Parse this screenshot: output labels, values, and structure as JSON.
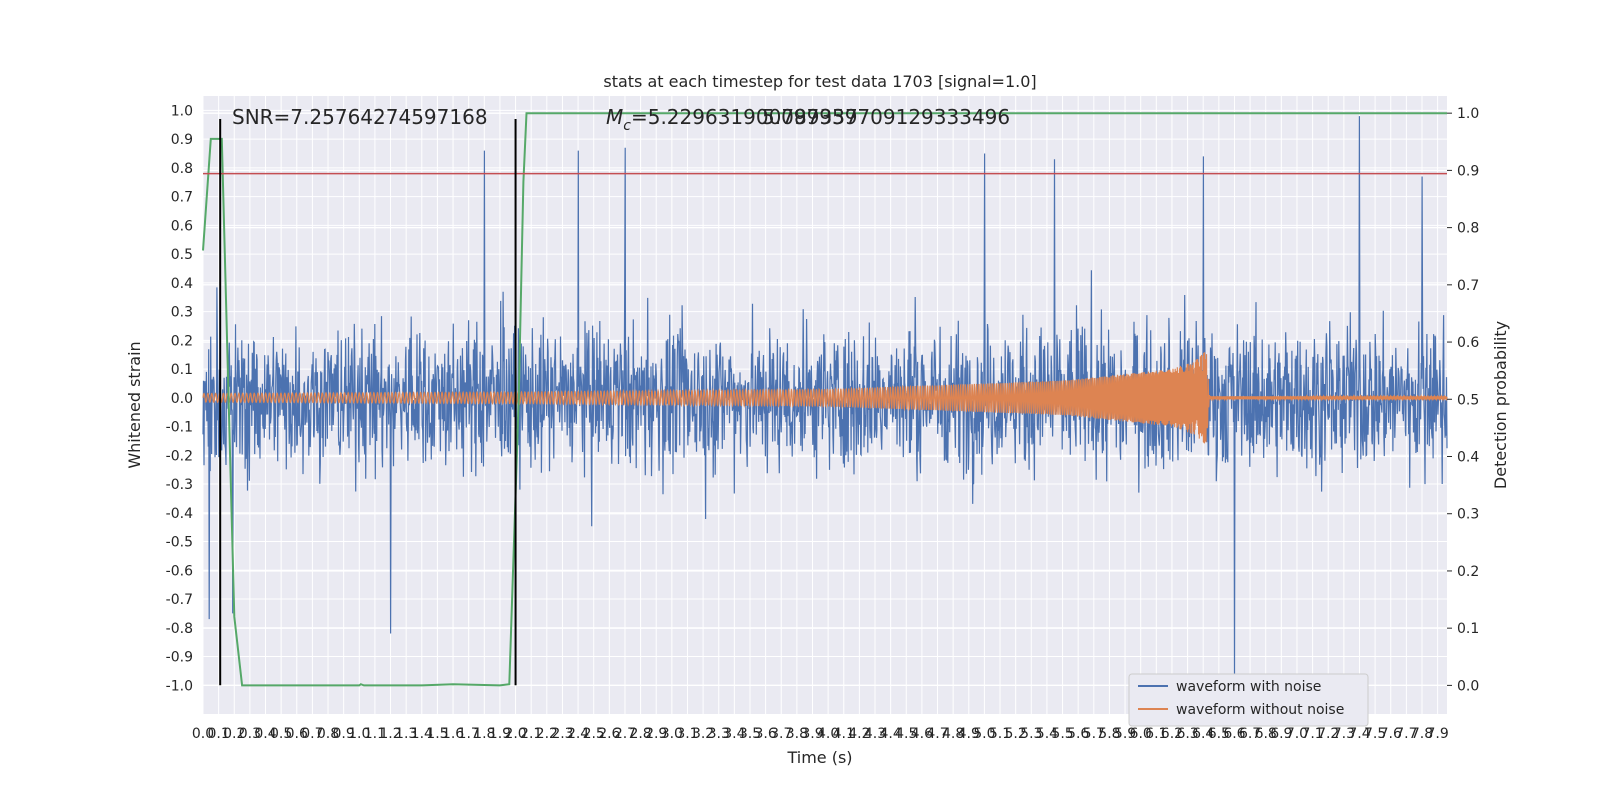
{
  "chart_data": {
    "type": "line",
    "title": "stats at each timestep for test data 1703 [signal=1.0]",
    "xlabel": "Time (s)",
    "ylabel_left": "Whitened strain",
    "ylabel_right": "Detection probability",
    "xlim": [
      0.0,
      7.96
    ],
    "ylim_left": [
      -1.1,
      1.05
    ],
    "ylim_right": [
      -0.05,
      1.03
    ],
    "x_ticks": [
      "0.0",
      "0.1",
      "0.2",
      "0.3",
      "0.4",
      "0.5",
      "0.6",
      "0.7",
      "0.8",
      "0.9",
      "1.0",
      "1.1",
      "1.2",
      "1.3",
      "1.4",
      "1.5",
      "1.6",
      "1.7",
      "1.8",
      "1.9",
      "2.0",
      "2.1",
      "2.2",
      "2.3",
      "2.4",
      "2.5",
      "2.6",
      "2.7",
      "2.8",
      "2.9",
      "3.0",
      "3.1",
      "3.2",
      "3.3",
      "3.4",
      "3.5",
      "3.6",
      "3.7",
      "3.8",
      "3.9",
      "4.0",
      "4.1",
      "4.2",
      "4.3",
      "4.4",
      "4.5",
      "4.6",
      "4.7",
      "4.8",
      "4.9",
      "5.0",
      "5.1",
      "5.2",
      "5.3",
      "5.4",
      "5.5",
      "5.6",
      "5.7",
      "5.8",
      "5.9",
      "6.0",
      "6.1",
      "6.2",
      "6.3",
      "6.4",
      "6.5",
      "6.6",
      "6.7",
      "6.8",
      "6.9",
      "7.0",
      "7.1",
      "7.2",
      "7.3",
      "7.4",
      "7.5",
      "7.6",
      "7.7",
      "7.8",
      "7.9"
    ],
    "y_ticks_left": [
      "1.0",
      "0.9",
      "0.8",
      "0.7",
      "0.6",
      "0.5",
      "0.4",
      "0.3",
      "0.2",
      "0.1",
      "0.0",
      "-0.1",
      "-0.2",
      "-0.3",
      "-0.4",
      "-0.5",
      "-0.6",
      "-0.7",
      "-0.8",
      "-0.9",
      "-1.0"
    ],
    "y_ticks_right": [
      "1.0",
      "0.9",
      "0.8",
      "0.7",
      "0.6",
      "0.5",
      "0.4",
      "0.3",
      "0.2",
      "0.1",
      "0.0"
    ],
    "annotations": {
      "snr": "SNR=7.25764274597168",
      "mc": "M",
      "mc_sub": "c",
      "mc_value": "=5.229631900789337",
      "mc_overlap": "5.097959709129333496"
    },
    "legend": {
      "position": "lower-right",
      "entries": [
        "waveform with noise",
        "waveform without noise"
      ]
    },
    "colors": {
      "noise": "#4c72b0",
      "clean": "#dd8452",
      "probability": "#55a868",
      "threshold": "#c44e52",
      "markers": "#000000",
      "background": "#eaeaf2",
      "grid": "#ffffff"
    },
    "series": [
      {
        "name": "waveform with noise",
        "axis": "left",
        "description_peaks": [
          {
            "x": 0.04,
            "y": -0.77
          },
          {
            "x": 0.19,
            "y": -0.75
          },
          {
            "x": 1.2,
            "y": -0.82
          },
          {
            "x": 1.8,
            "y": 0.86
          },
          {
            "x": 2.7,
            "y": 0.87
          },
          {
            "x": 2.4,
            "y": 0.86
          },
          {
            "x": 5.0,
            "y": 0.85
          },
          {
            "x": 5.45,
            "y": 0.83
          },
          {
            "x": 6.4,
            "y": 0.84
          },
          {
            "x": 6.6,
            "y": -0.98
          },
          {
            "x": 7.4,
            "y": 0.98
          },
          {
            "x": 7.8,
            "y": 0.77
          }
        ]
      },
      {
        "name": "waveform without noise",
        "axis": "left",
        "envelope": [
          {
            "x": 0.0,
            "y": 0.015
          },
          {
            "x": 2.0,
            "y": 0.02
          },
          {
            "x": 4.0,
            "y": 0.03
          },
          {
            "x": 5.5,
            "y": 0.06
          },
          {
            "x": 6.2,
            "y": 0.1
          },
          {
            "x": 6.35,
            "y": 0.13
          },
          {
            "x": 6.42,
            "y": 0.165
          },
          {
            "x": 6.44,
            "y": 0.005
          },
          {
            "x": 7.96,
            "y": 0.005
          }
        ]
      },
      {
        "name": "detection probability",
        "axis": "right",
        "points": [
          {
            "x": 0.0,
            "y": 0.76
          },
          {
            "x": 0.05,
            "y": 0.955
          },
          {
            "x": 0.1,
            "y": 0.955
          },
          {
            "x": 0.12,
            "y": 0.955
          },
          {
            "x": 0.2,
            "y": 0.12
          },
          {
            "x": 0.25,
            "y": 0.0
          },
          {
            "x": 1.0,
            "y": 0.0
          },
          {
            "x": 1.01,
            "y": 0.002
          },
          {
            "x": 1.03,
            "y": 0.0
          },
          {
            "x": 1.4,
            "y": 0.0
          },
          {
            "x": 1.6,
            "y": 0.002
          },
          {
            "x": 1.9,
            "y": 0.0
          },
          {
            "x": 1.96,
            "y": 0.002
          },
          {
            "x": 2.02,
            "y": 0.5
          },
          {
            "x": 2.05,
            "y": 0.88
          },
          {
            "x": 2.07,
            "y": 1.0
          },
          {
            "x": 7.96,
            "y": 1.0
          }
        ]
      }
    ],
    "threshold_left": 0.78,
    "vertical_markers_x": [
      0.11,
      2.0
    ],
    "vertical_marker_range": [
      -1.0,
      0.97
    ]
  }
}
